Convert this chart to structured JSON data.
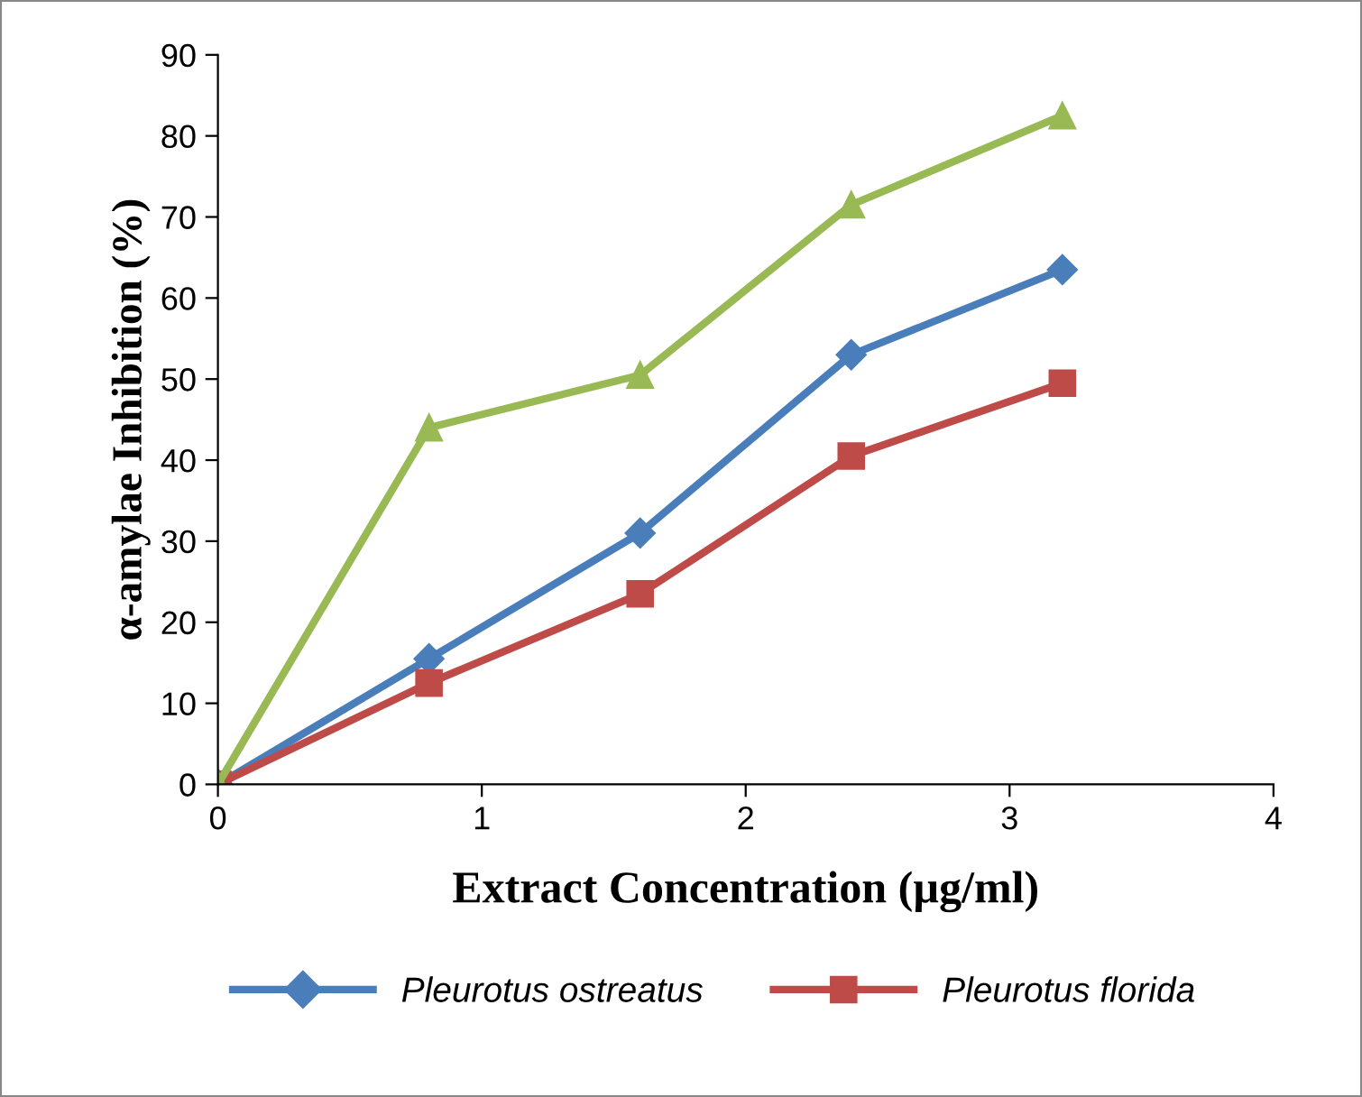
{
  "chart_data": {
    "type": "line",
    "xlabel": "Extract Concentration (µg/ml)",
    "ylabel": "α-amylae Inhibition (%)",
    "x": [
      0,
      0.8,
      1.6,
      2.4,
      3.2
    ],
    "xlim": [
      0,
      4
    ],
    "xticks": [
      0,
      1,
      2,
      3,
      4
    ],
    "ylim": [
      0,
      90
    ],
    "yticks": [
      0,
      10,
      20,
      30,
      40,
      50,
      60,
      70,
      80,
      90
    ],
    "grid": false,
    "legend": "bottom",
    "line_style": "solid",
    "series": [
      {
        "name": "Pleurotus ostreatus",
        "color": "#4a7ebb",
        "marker": "diamond",
        "values": [
          0,
          15.5,
          31,
          53,
          63.5
        ]
      },
      {
        "name": "Pleurotus florida",
        "color": "#be4b48",
        "marker": "square",
        "values": [
          0,
          12.5,
          23.5,
          40.5,
          49.5
        ]
      },
      {
        "color": "#98b954",
        "marker": "triangle",
        "values": [
          0,
          44,
          50.5,
          71.5,
          82.5
        ]
      }
    ]
  }
}
